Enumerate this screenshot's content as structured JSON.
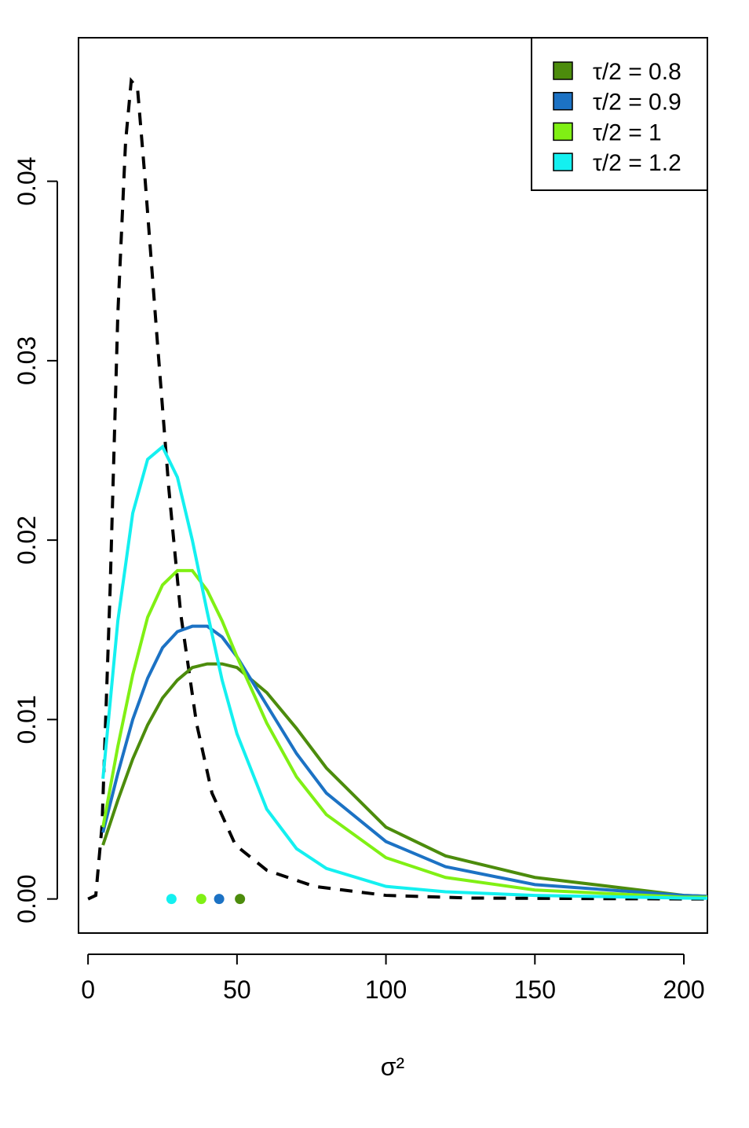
{
  "chart_data": {
    "type": "line",
    "xlabel": "σ²",
    "xlim": [
      -3.2,
      207.9
    ],
    "ylim": [
      -0.0019,
      0.048
    ],
    "xticks": [
      0,
      50,
      100,
      150,
      200
    ],
    "yticks": [
      {
        "value": 0,
        "label": "0.00"
      },
      {
        "value": 0.01,
        "label": "0.01"
      },
      {
        "value": 0.02,
        "label": "0.02"
      },
      {
        "value": 0.03,
        "label": "0.03"
      },
      {
        "value": 0.04,
        "label": "0.04"
      }
    ],
    "legend": "top-right",
    "series": [
      {
        "color": "#000000",
        "line_style": "dashed",
        "x": [
          0,
          2.6,
          4.7,
          7.4,
          10,
          12.6,
          14.5,
          16.6,
          19.2,
          23.2,
          27.1,
          31.1,
          36.4,
          41.6,
          49.5,
          60,
          76,
          100,
          129,
          200,
          207.9
        ],
        "values": [
          0,
          0.0002,
          0.0041,
          0.0172,
          0.0326,
          0.0422,
          0.0456,
          0.0452,
          0.04,
          0.0312,
          0.0229,
          0.0159,
          0.0098,
          0.0059,
          0.003,
          0.0016,
          0.0007,
          0.0002,
          5e-05,
          0,
          0
        ]
      },
      {
        "name": "τ/2 = 0.8",
        "color": "#4c8c0c",
        "x": [
          5,
          10,
          15,
          20,
          25,
          30,
          35,
          40,
          45,
          50,
          60,
          70,
          80,
          100,
          120,
          150,
          200,
          207.9
        ],
        "values": [
          0.003,
          0.0055,
          0.0078,
          0.0097,
          0.0112,
          0.0122,
          0.0129,
          0.0131,
          0.0131,
          0.0129,
          0.0115,
          0.0095,
          0.0073,
          0.004,
          0.0024,
          0.0012,
          0.0002,
          0.00015
        ],
        "point": [
          51,
          0
        ]
      },
      {
        "name": "τ/2 = 0.9",
        "color": "#1c72c4",
        "x": [
          5,
          10,
          15,
          20,
          25,
          30,
          35,
          40,
          45,
          50,
          60,
          70,
          80,
          100,
          120,
          150,
          200,
          207.9
        ],
        "values": [
          0.0037,
          0.007,
          0.01,
          0.0123,
          0.014,
          0.0149,
          0.0152,
          0.0152,
          0.0146,
          0.0135,
          0.0108,
          0.0081,
          0.0059,
          0.0032,
          0.0018,
          0.0008,
          0.0002,
          0.00015
        ],
        "point": [
          44,
          0
        ]
      },
      {
        "name": "τ/2 = 1",
        "color": "#80f014",
        "x": [
          5,
          10,
          15,
          20,
          25,
          30,
          35,
          40,
          45,
          50,
          60,
          70,
          80,
          100,
          120,
          150,
          200,
          207.9
        ],
        "values": [
          0.004,
          0.0085,
          0.0125,
          0.0157,
          0.0175,
          0.0183,
          0.0183,
          0.0172,
          0.0155,
          0.0135,
          0.0098,
          0.0068,
          0.0047,
          0.0023,
          0.0012,
          0.0005,
          0.0001,
          0.0001
        ],
        "point": [
          38,
          0
        ]
      },
      {
        "name": "τ/2 = 1.2",
        "color": "#14f0f0",
        "x": [
          5,
          10,
          15,
          20,
          25,
          30,
          35,
          40,
          45,
          50,
          60,
          70,
          80,
          100,
          120,
          150,
          200,
          207.9
        ],
        "values": [
          0.0067,
          0.0155,
          0.0215,
          0.0245,
          0.0252,
          0.0235,
          0.02,
          0.016,
          0.0122,
          0.0092,
          0.005,
          0.0028,
          0.0017,
          0.0007,
          0.0004,
          0.0002,
          5e-05,
          4e-05
        ],
        "point": [
          28,
          0
        ]
      }
    ]
  }
}
